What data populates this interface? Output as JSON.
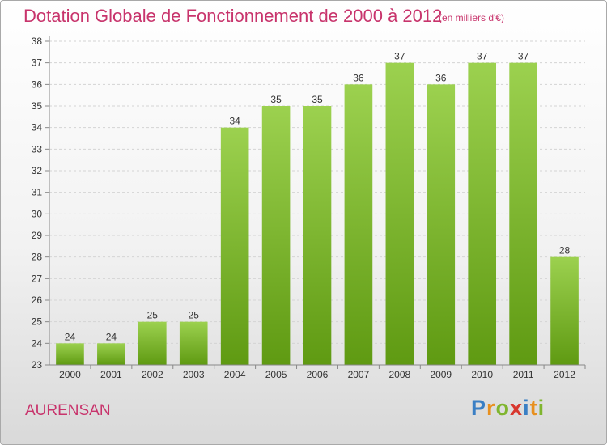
{
  "title": "Dotation Globale de Fonctionnement de 2000 à 2012",
  "unit_note": "(en milliers d'€)",
  "commune": "AURENSAN",
  "logo": {
    "letters": [
      "P",
      "r",
      "o",
      "x",
      "i",
      "t",
      "i"
    ],
    "colors": [
      "#3a7fc4",
      "#e8901f",
      "#7fb52e",
      "#d8372e",
      "#3a7fc4",
      "#e8901f",
      "#7fb52e"
    ]
  },
  "colors": {
    "bar_top": "#9cd14f",
    "bar_bottom": "#5f9a12",
    "title": "#c8346c"
  },
  "chart_data": {
    "type": "bar",
    "title": "Dotation Globale de Fonctionnement de 2000 à 2012",
    "subtitle": "(en milliers d'€)",
    "categories": [
      "2000",
      "2001",
      "2002",
      "2003",
      "2004",
      "2005",
      "2006",
      "2007",
      "2008",
      "2009",
      "2010",
      "2011",
      "2012"
    ],
    "values": [
      24,
      24,
      25,
      25,
      34,
      35,
      35,
      36,
      37,
      36,
      37,
      37,
      28
    ],
    "ylim": [
      23,
      38
    ],
    "yticks": [
      23,
      24,
      25,
      26,
      27,
      28,
      29,
      30,
      31,
      32,
      33,
      34,
      35,
      36,
      37,
      38
    ],
    "grid": true,
    "legend": "none"
  }
}
